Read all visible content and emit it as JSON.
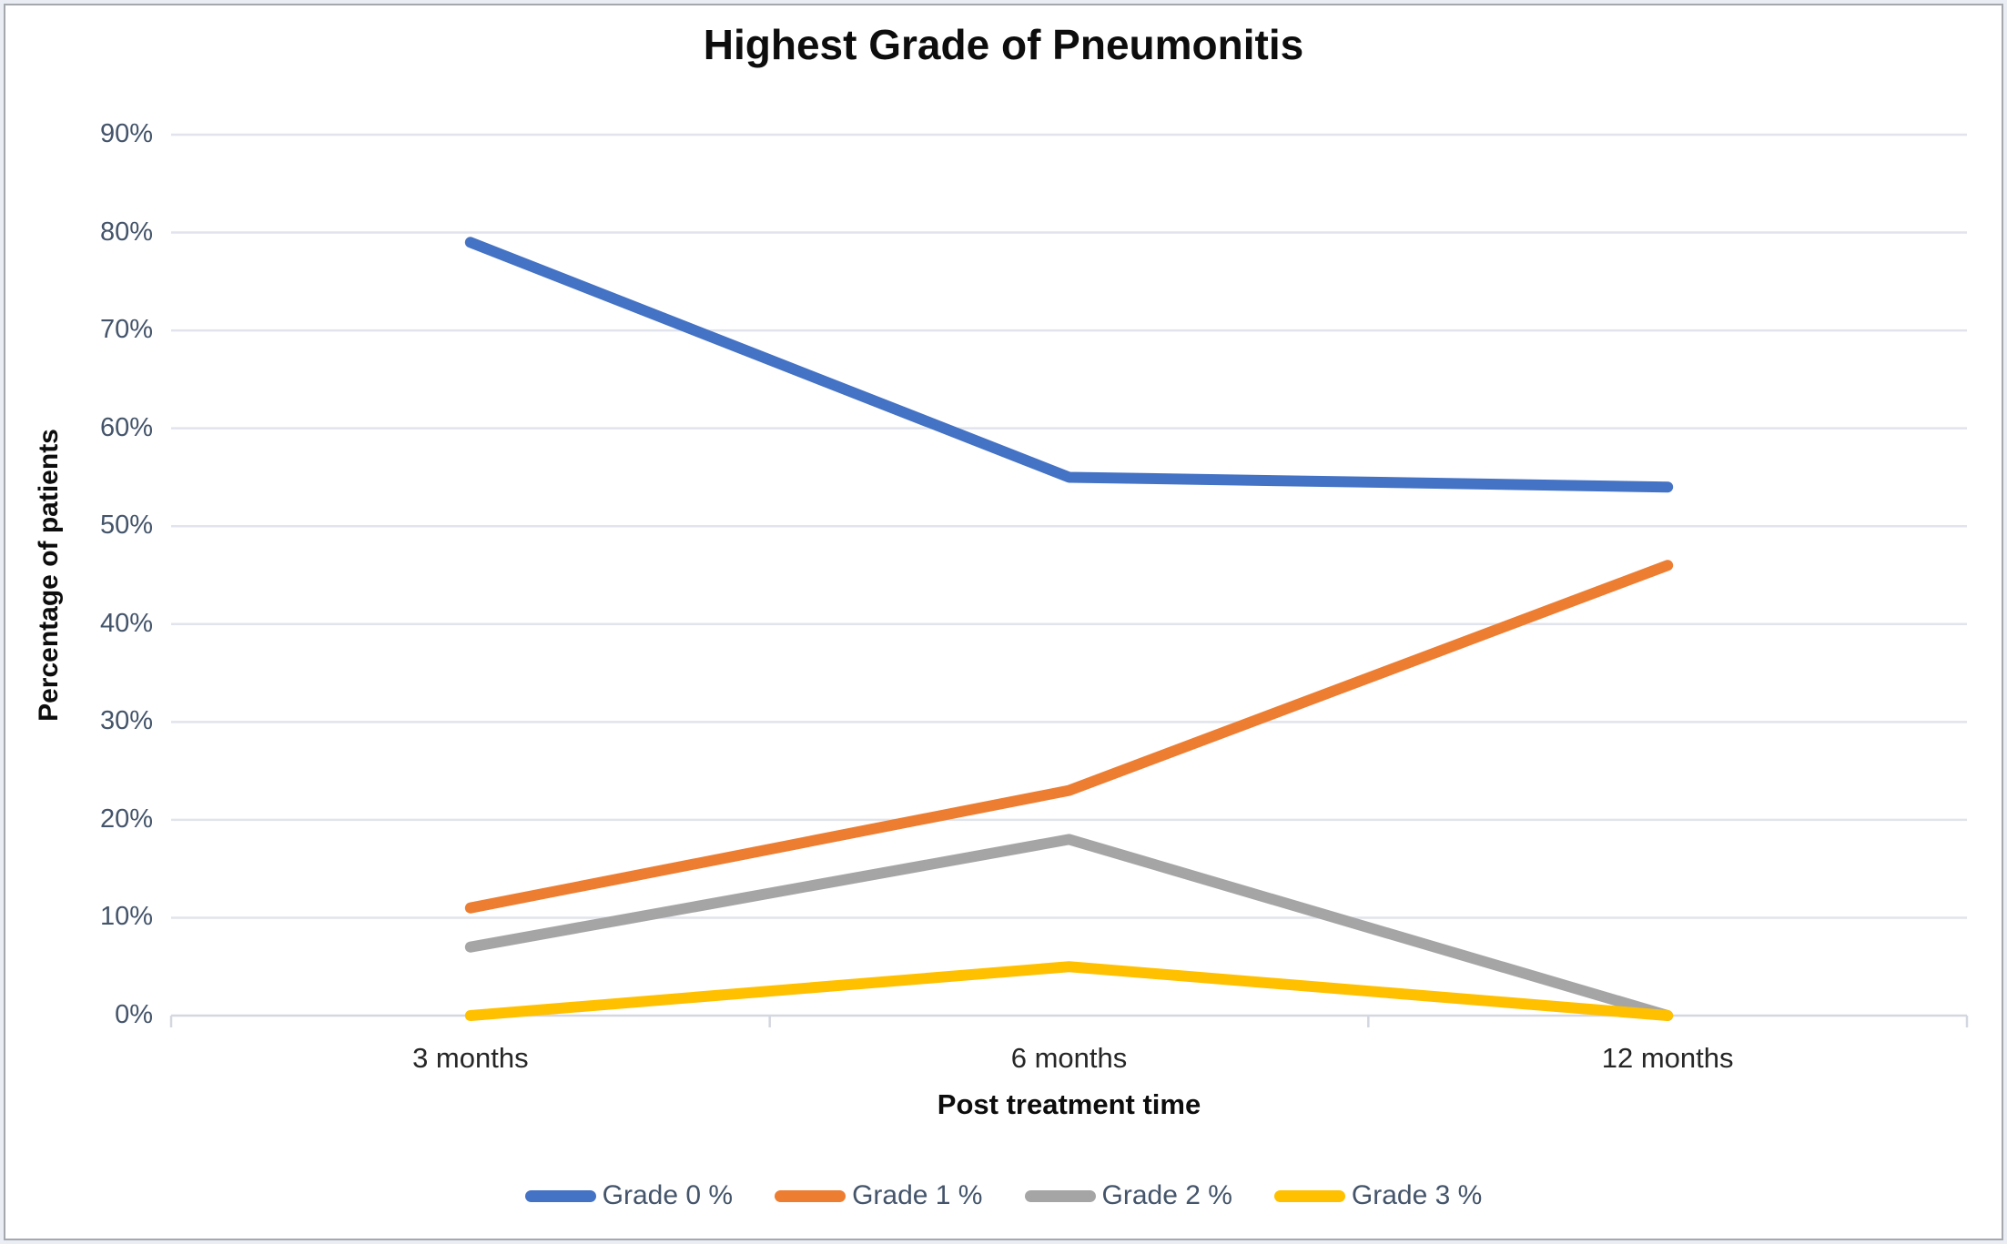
{
  "chart_data": {
    "type": "line",
    "title": "Highest Grade of Pneumonitis",
    "xlabel": "Post treatment time",
    "ylabel": "Percentage of patients",
    "categories": [
      "3 months",
      "6 months",
      "12 months"
    ],
    "series": [
      {
        "name": "Grade 0 %",
        "color": "#4472C4",
        "values": [
          79,
          55,
          54
        ]
      },
      {
        "name": "Grade 1 %",
        "color": "#ED7D31",
        "values": [
          11,
          23,
          46
        ]
      },
      {
        "name": "Grade 2 %",
        "color": "#A5A5A5",
        "values": [
          7,
          18,
          0
        ]
      },
      {
        "name": "Grade 3 %",
        "color": "#FFC000",
        "values": [
          0,
          5,
          0
        ]
      }
    ],
    "ylim": [
      0,
      90
    ],
    "y_ticks": [
      "90%",
      "80%",
      "70%",
      "60%",
      "50%",
      "40%",
      "30%",
      "20%",
      "10%",
      "0%"
    ],
    "grid": true,
    "legend_position": "bottom"
  },
  "styles": {
    "gridline_color": "#e1e4ec",
    "axis_line_color": "#d3d7df",
    "y_tick_label_color": "#44546A",
    "x_tick_label_color": "#262626",
    "legend_text_color": "#44546A",
    "title_color": "#0d0d0d"
  }
}
